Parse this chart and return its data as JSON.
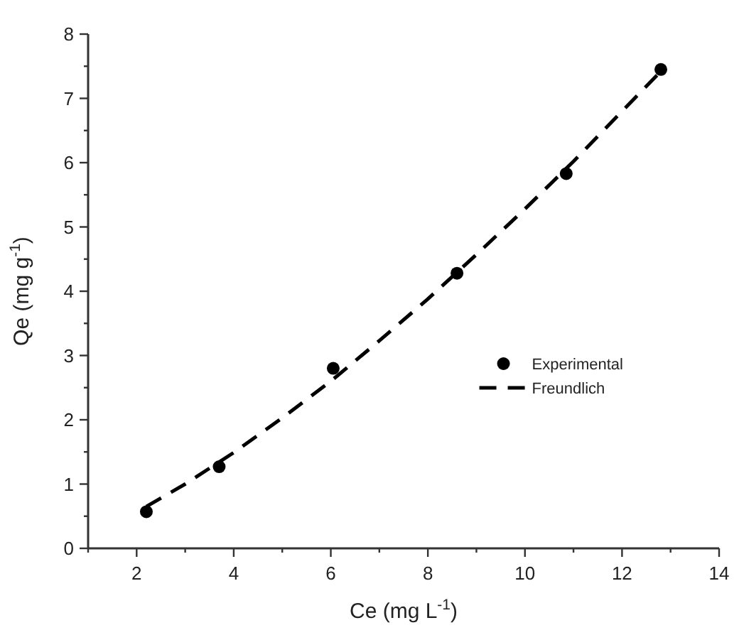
{
  "chart_data": {
    "type": "scatter",
    "xlabel": "Ce (mg L$^{-1}$)",
    "ylabel": "Qe (mg g$^{-1}$)",
    "xlim": [
      1,
      14
    ],
    "ylim": [
      0,
      8
    ],
    "xticks": [
      {
        "value": 1,
        "label": null
      },
      2,
      {
        "value": 3,
        "label": null
      },
      4,
      {
        "value": 5,
        "label": null
      },
      6,
      {
        "value": 7,
        "label": null
      },
      8,
      {
        "value": 9,
        "label": null
      },
      10,
      {
        "value": 11,
        "label": null
      },
      12,
      {
        "value": 13,
        "label": null
      },
      14
    ],
    "yticks": [
      0,
      {
        "value": 0.5,
        "label": null
      },
      1,
      {
        "value": 1.5,
        "label": null
      },
      2,
      {
        "value": 2.5,
        "label": null
      },
      3,
      {
        "value": 3.5,
        "label": null
      },
      4,
      {
        "value": 4.5,
        "label": null
      },
      5,
      {
        "value": 5.5,
        "label": null
      },
      6,
      {
        "value": 6.5,
        "label": null
      },
      7,
      {
        "value": 7.5,
        "label": null
      },
      8
    ],
    "legend": "bottom right",
    "grid": false,
    "series": [
      {
        "name": "Experimental",
        "color": "#000000",
        "marker": "circle",
        "x": [
          2.2,
          3.7,
          6.05,
          8.6,
          10.85,
          12.8
        ],
        "values": [
          0.57,
          1.27,
          2.8,
          4.28,
          5.83,
          7.45
        ]
      },
      {
        "name": "Freundlich",
        "type": "line",
        "color": "#000000",
        "marker": "none",
        "line_style": "dashed",
        "x": [
          2.2,
          3,
          4,
          5,
          6,
          7,
          8,
          9,
          10,
          11,
          12,
          12.8
        ],
        "values": [
          0.65,
          1.0,
          1.49,
          2.03,
          2.6,
          3.23,
          3.88,
          4.57,
          5.28,
          6.02,
          6.8,
          7.42
        ]
      }
    ]
  }
}
